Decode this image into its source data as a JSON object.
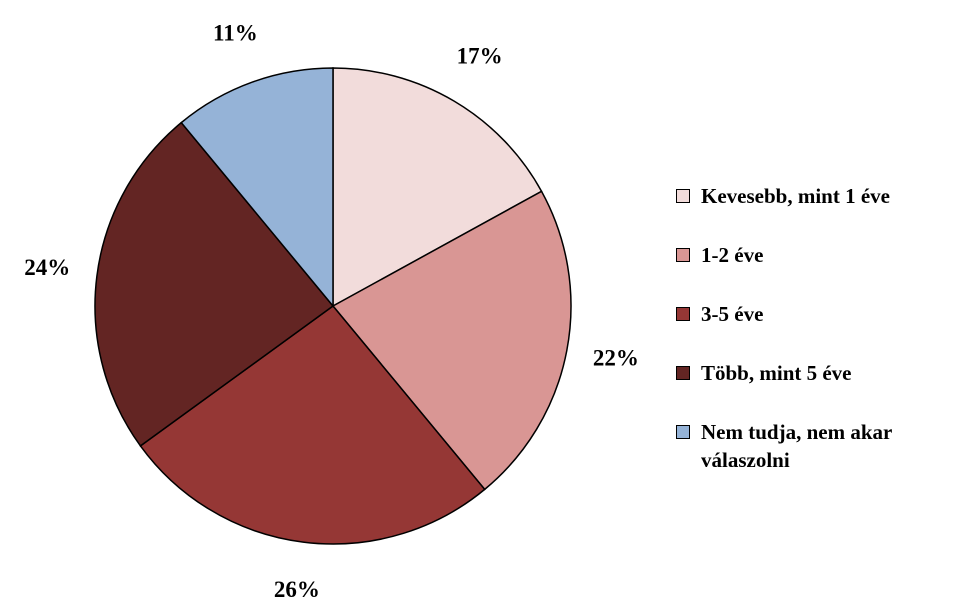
{
  "chart_data": {
    "type": "pie",
    "start_angle_deg": 0,
    "direction": "clockwise",
    "legend_position": "right",
    "slices": [
      {
        "label": "Kevesebb, mint 1 éve",
        "value": 17,
        "value_label": "17%",
        "color": "#F2DCDB"
      },
      {
        "label": "1-2 éve",
        "value": 22,
        "value_label": "22%",
        "color": "#D99694"
      },
      {
        "label": "3-5 éve",
        "value": 26,
        "value_label": "26%",
        "color": "#953735"
      },
      {
        "label": "Több, mint 5 éve",
        "value": 24,
        "value_label": "24%",
        "color": "#632523"
      },
      {
        "label": "Nem tudja, nem akar válaszolni",
        "value": 11,
        "value_label": "11%",
        "color": "#95B3D7"
      }
    ]
  }
}
